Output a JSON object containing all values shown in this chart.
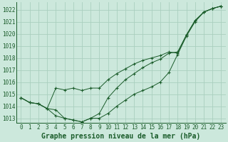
{
  "title": "Graphe pression niveau de la mer (hPa)",
  "bg_color": "#cce8dc",
  "grid_color": "#aacfbf",
  "line_color": "#1a5c2a",
  "marker_color": "#1a5c2a",
  "x_ticks": [
    0,
    1,
    2,
    3,
    4,
    5,
    6,
    7,
    8,
    9,
    10,
    11,
    12,
    13,
    14,
    15,
    16,
    17,
    18,
    19,
    20,
    21,
    22,
    23
  ],
  "ylim": [
    1012.6,
    1022.6
  ],
  "y_ticks": [
    1013,
    1014,
    1015,
    1016,
    1017,
    1018,
    1019,
    1020,
    1021,
    1022
  ],
  "series": [
    [
      1014.7,
      1014.3,
      1014.2,
      1013.8,
      1013.7,
      1013.0,
      1012.85,
      1012.7,
      1013.0,
      1013.0,
      1013.4,
      1014.0,
      1014.5,
      1015.0,
      1015.3,
      1015.6,
      1016.0,
      1016.8,
      1018.3,
      1019.8,
      1021.0,
      1021.8,
      1022.1,
      1022.3
    ],
    [
      1014.7,
      1014.3,
      1014.2,
      1013.8,
      1013.2,
      1013.0,
      1012.85,
      1012.7,
      1013.0,
      1013.4,
      1014.7,
      1015.5,
      1016.2,
      1016.7,
      1017.2,
      1017.6,
      1017.9,
      1018.4,
      1018.5,
      1019.9,
      1021.1,
      1021.8,
      1022.1,
      1022.3
    ],
    [
      1014.7,
      1014.3,
      1014.2,
      1013.8,
      1015.5,
      1015.35,
      1015.5,
      1015.3,
      1015.5,
      1015.5,
      1016.2,
      1016.7,
      1017.1,
      1017.5,
      1017.8,
      1018.0,
      1018.2,
      1018.5,
      1018.4,
      1019.9,
      1021.1,
      1021.8,
      1022.1,
      1022.3
    ]
  ],
  "title_fontsize": 7,
  "tick_fontsize": 5.5
}
